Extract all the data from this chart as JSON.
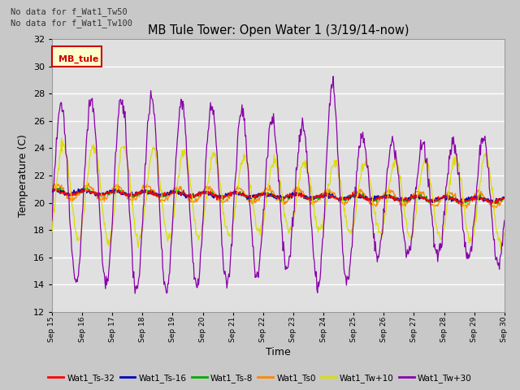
{
  "title": "MB Tule Tower: Open Water 1 (3/19/14-now)",
  "xlabel": "Time",
  "ylabel": "Temperature (C)",
  "ylim": [
    12,
    32
  ],
  "yticks": [
    12,
    14,
    16,
    18,
    20,
    22,
    24,
    26,
    28,
    30,
    32
  ],
  "xtick_labels": [
    "Sep 15",
    "Sep 16",
    "Sep 17",
    "Sep 18",
    "Sep 19",
    "Sep 20",
    "Sep 21",
    "Sep 22",
    "Sep 23",
    "Sep 24",
    "Sep 25",
    "Sep 26",
    "Sep 27",
    "Sep 28",
    "Sep 29",
    "Sep 30"
  ],
  "annotations": [
    "No data for f_Wat1_Tw50",
    "No data for f_Wat1_Tw100"
  ],
  "legend_box_label": "MB_tule",
  "legend_entries": [
    {
      "label": "Wat1_Ts-32",
      "color": "#ff0000"
    },
    {
      "label": "Wat1_Ts-16",
      "color": "#0000bb"
    },
    {
      "label": "Wat1_Ts-8",
      "color": "#00aa00"
    },
    {
      "label": "Wat1_Ts0",
      "color": "#ff8800"
    },
    {
      "label": "Wat1_Tw+10",
      "color": "#dddd00"
    },
    {
      "label": "Wat1_Tw+30",
      "color": "#8800aa"
    }
  ]
}
